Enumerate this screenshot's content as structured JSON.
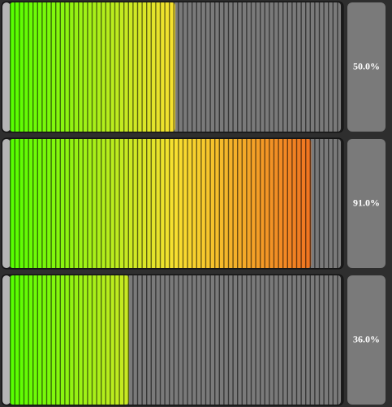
{
  "meters": [
    {
      "value": 50.0,
      "label": "50.0%"
    },
    {
      "value": 91.0,
      "label": "91.0%"
    },
    {
      "value": 36.0,
      "label": "36.0%"
    }
  ]
}
